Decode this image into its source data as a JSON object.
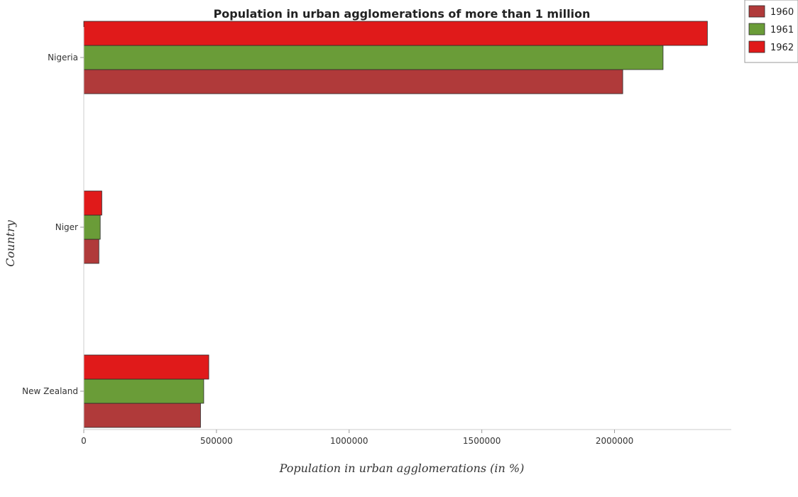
{
  "colors": {
    "series": [
      "#b03a3a",
      "#6a9c38",
      "#e01a1a"
    ],
    "edge": "#2a2a2a",
    "axis": "#cccccc"
  },
  "chart_data": {
    "type": "bar",
    "orientation": "horizontal",
    "title": "Population in urban agglomerations of more than 1 million",
    "xlabel": "Population in urban agglomerations (in %)",
    "ylabel": "Country",
    "categories": [
      "New Zealand",
      "Niger",
      "Nigeria"
    ],
    "series": [
      {
        "name": "1960",
        "values": [
          440000,
          57000,
          2031000
        ]
      },
      {
        "name": "1961",
        "values": [
          452000,
          62000,
          2183000
        ]
      },
      {
        "name": "1962",
        "values": [
          471000,
          68000,
          2350000
        ]
      }
    ],
    "xlim": [
      0,
      2440000
    ],
    "xticks": [
      0,
      500000,
      1000000,
      1500000,
      2000000
    ],
    "xtick_labels": [
      "0",
      "500000",
      "1000000",
      "1500000",
      "2000000"
    ],
    "legend": "top-right",
    "grid": false
  }
}
